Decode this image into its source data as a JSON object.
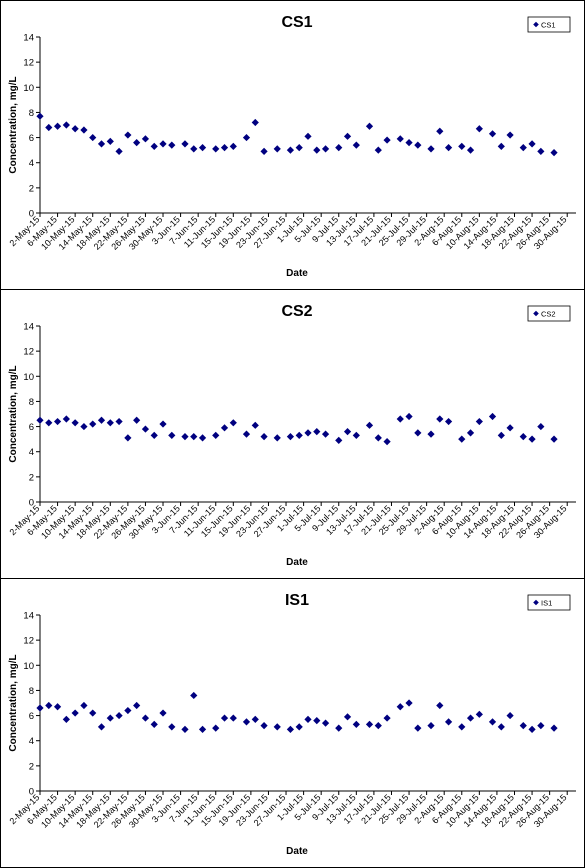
{
  "chart_data": [
    {
      "type": "scatter",
      "title": "CS1",
      "xlabel": "Date",
      "ylabel": "Concentration, mg/L",
      "ylim": [
        0,
        14
      ],
      "yticks": [
        0,
        2,
        4,
        6,
        8,
        10,
        12,
        14
      ],
      "xlim": [
        "2-May-15",
        "1-Sep-15"
      ],
      "xtick_labels": [
        "2-May-15",
        "6-May-15",
        "10-May-15",
        "14-May-15",
        "18-May-15",
        "22-May-15",
        "26-May-15",
        "30-May-15",
        "3-Jun-15",
        "7-Jun-15",
        "11-Jun-15",
        "15-Jun-15",
        "19-Jun-15",
        "23-Jun-15",
        "27-Jun-15",
        "1-Jul-15",
        "5-Jul-15",
        "9-Jul-15",
        "13-Jul-15",
        "17-Jul-15",
        "21-Jul-15",
        "25-Jul-15",
        "29-Jul-15",
        "2-Aug-15",
        "6-Aug-15",
        "10-Aug-15",
        "14-Aug-15",
        "18-Aug-15",
        "22-Aug-15",
        "26-Aug-15",
        "30-Aug-15"
      ],
      "grid": false,
      "legend": "top-right",
      "marker_color": "#000080",
      "series": [
        {
          "name": "CS1",
          "points": [
            [
              "2-May-15",
              7.7
            ],
            [
              "4-May-15",
              6.8
            ],
            [
              "6-May-15",
              6.9
            ],
            [
              "8-May-15",
              7.0
            ],
            [
              "10-May-15",
              6.7
            ],
            [
              "12-May-15",
              6.6
            ],
            [
              "14-May-15",
              6.0
            ],
            [
              "16-May-15",
              5.5
            ],
            [
              "18-May-15",
              5.7
            ],
            [
              "20-May-15",
              4.9
            ],
            [
              "22-May-15",
              6.2
            ],
            [
              "24-May-15",
              5.6
            ],
            [
              "26-May-15",
              5.9
            ],
            [
              "28-May-15",
              5.3
            ],
            [
              "30-May-15",
              5.5
            ],
            [
              "1-Jun-15",
              5.4
            ],
            [
              "4-Jun-15",
              5.5
            ],
            [
              "6-Jun-15",
              5.1
            ],
            [
              "8-Jun-15",
              5.2
            ],
            [
              "11-Jun-15",
              5.1
            ],
            [
              "13-Jun-15",
              5.2
            ],
            [
              "15-Jun-15",
              5.3
            ],
            [
              "18-Jun-15",
              6.0
            ],
            [
              "20-Jun-15",
              7.2
            ],
            [
              "22-Jun-15",
              4.9
            ],
            [
              "25-Jun-15",
              5.1
            ],
            [
              "28-Jun-15",
              5.0
            ],
            [
              "30-Jun-15",
              5.2
            ],
            [
              "2-Jul-15",
              6.1
            ],
            [
              "4-Jul-15",
              5.0
            ],
            [
              "6-Jul-15",
              5.1
            ],
            [
              "9-Jul-15",
              5.2
            ],
            [
              "11-Jul-15",
              6.1
            ],
            [
              "13-Jul-15",
              5.4
            ],
            [
              "16-Jul-15",
              6.9
            ],
            [
              "18-Jul-15",
              5.0
            ],
            [
              "20-Jul-15",
              5.8
            ],
            [
              "23-Jul-15",
              5.9
            ],
            [
              "25-Jul-15",
              5.6
            ],
            [
              "27-Jul-15",
              5.4
            ],
            [
              "30-Jul-15",
              5.1
            ],
            [
              "1-Aug-15",
              6.5
            ],
            [
              "3-Aug-15",
              5.2
            ],
            [
              "6-Aug-15",
              5.3
            ],
            [
              "8-Aug-15",
              5.0
            ],
            [
              "10-Aug-15",
              6.7
            ],
            [
              "13-Aug-15",
              6.3
            ],
            [
              "15-Aug-15",
              5.3
            ],
            [
              "17-Aug-15",
              6.2
            ],
            [
              "20-Aug-15",
              5.2
            ],
            [
              "22-Aug-15",
              5.5
            ],
            [
              "24-Aug-15",
              4.9
            ],
            [
              "27-Aug-15",
              4.8
            ]
          ]
        }
      ]
    },
    {
      "type": "scatter",
      "title": "CS2",
      "xlabel": "Date",
      "ylabel": "Concentration, mg/L",
      "ylim": [
        0,
        14
      ],
      "yticks": [
        0,
        2,
        4,
        6,
        8,
        10,
        12,
        14
      ],
      "xlim": [
        "2-May-15",
        "1-Sep-15"
      ],
      "xtick_labels": [
        "2-May-15",
        "6-May-15",
        "10-May-15",
        "14-May-15",
        "18-May-15",
        "22-May-15",
        "26-May-15",
        "30-May-15",
        "3-Jun-15",
        "7-Jun-15",
        "11-Jun-15",
        "15-Jun-15",
        "19-Jun-15",
        "23-Jun-15",
        "27-Jun-15",
        "1-Jul-15",
        "5-Jul-15",
        "9-Jul-15",
        "13-Jul-15",
        "17-Jul-15",
        "21-Jul-15",
        "25-Jul-15",
        "29-Jul-15",
        "2-Aug-15",
        "6-Aug-15",
        "10-Aug-15",
        "14-Aug-15",
        "18-Aug-15",
        "22-Aug-15",
        "26-Aug-15",
        "30-Aug-15"
      ],
      "grid": false,
      "legend": "top-right",
      "marker_color": "#000080",
      "series": [
        {
          "name": "CS2",
          "points": [
            [
              "2-May-15",
              6.5
            ],
            [
              "4-May-15",
              6.3
            ],
            [
              "6-May-15",
              6.4
            ],
            [
              "8-May-15",
              6.6
            ],
            [
              "10-May-15",
              6.3
            ],
            [
              "12-May-15",
              6.0
            ],
            [
              "14-May-15",
              6.2
            ],
            [
              "16-May-15",
              6.5
            ],
            [
              "18-May-15",
              6.3
            ],
            [
              "20-May-15",
              6.4
            ],
            [
              "22-May-15",
              5.1
            ],
            [
              "24-May-15",
              6.5
            ],
            [
              "26-May-15",
              5.8
            ],
            [
              "28-May-15",
              5.3
            ],
            [
              "30-May-15",
              6.2
            ],
            [
              "1-Jun-15",
              5.3
            ],
            [
              "4-Jun-15",
              5.2
            ],
            [
              "6-Jun-15",
              5.2
            ],
            [
              "8-Jun-15",
              5.1
            ],
            [
              "11-Jun-15",
              5.3
            ],
            [
              "13-Jun-15",
              5.9
            ],
            [
              "15-Jun-15",
              6.3
            ],
            [
              "18-Jun-15",
              5.4
            ],
            [
              "20-Jun-15",
              6.1
            ],
            [
              "22-Jun-15",
              5.2
            ],
            [
              "25-Jun-15",
              5.1
            ],
            [
              "28-Jun-15",
              5.2
            ],
            [
              "30-Jun-15",
              5.3
            ],
            [
              "2-Jul-15",
              5.5
            ],
            [
              "4-Jul-15",
              5.6
            ],
            [
              "6-Jul-15",
              5.4
            ],
            [
              "9-Jul-15",
              4.9
            ],
            [
              "11-Jul-15",
              5.6
            ],
            [
              "13-Jul-15",
              5.3
            ],
            [
              "16-Jul-15",
              6.1
            ],
            [
              "18-Jul-15",
              5.1
            ],
            [
              "20-Jul-15",
              4.8
            ],
            [
              "23-Jul-15",
              6.6
            ],
            [
              "25-Jul-15",
              6.8
            ],
            [
              "27-Jul-15",
              5.5
            ],
            [
              "30-Jul-15",
              5.4
            ],
            [
              "1-Aug-15",
              6.6
            ],
            [
              "3-Aug-15",
              6.4
            ],
            [
              "6-Aug-15",
              5.0
            ],
            [
              "8-Aug-15",
              5.5
            ],
            [
              "10-Aug-15",
              6.4
            ],
            [
              "13-Aug-15",
              6.8
            ],
            [
              "15-Aug-15",
              5.3
            ],
            [
              "17-Aug-15",
              5.9
            ],
            [
              "20-Aug-15",
              5.2
            ],
            [
              "22-Aug-15",
              5.0
            ],
            [
              "24-Aug-15",
              6.0
            ],
            [
              "27-Aug-15",
              5.0
            ]
          ]
        }
      ]
    },
    {
      "type": "scatter",
      "title": "IS1",
      "xlabel": "Date",
      "ylabel": "Concentration, mg/L",
      "ylim": [
        0,
        14
      ],
      "yticks": [
        0,
        2,
        4,
        6,
        8,
        10,
        12,
        14
      ],
      "xlim": [
        "2-May-15",
        "1-Sep-15"
      ],
      "xtick_labels": [
        "2-May-15",
        "6-May-15",
        "10-May-15",
        "14-May-15",
        "18-May-15",
        "22-May-15",
        "26-May-15",
        "30-May-15",
        "3-Jun-15",
        "7-Jun-15",
        "11-Jun-15",
        "15-Jun-15",
        "19-Jun-15",
        "23-Jun-15",
        "27-Jun-15",
        "1-Jul-15",
        "5-Jul-15",
        "9-Jul-15",
        "13-Jul-15",
        "17-Jul-15",
        "21-Jul-15",
        "25-Jul-15",
        "29-Jul-15",
        "2-Aug-15",
        "6-Aug-15",
        "10-Aug-15",
        "14-Aug-15",
        "18-Aug-15",
        "22-Aug-15",
        "26-Aug-15",
        "30-Aug-15"
      ],
      "grid": false,
      "legend": "top-right",
      "marker_color": "#000080",
      "series": [
        {
          "name": "IS1",
          "points": [
            [
              "2-May-15",
              6.6
            ],
            [
              "4-May-15",
              6.8
            ],
            [
              "6-May-15",
              6.7
            ],
            [
              "8-May-15",
              5.7
            ],
            [
              "10-May-15",
              6.2
            ],
            [
              "12-May-15",
              6.8
            ],
            [
              "14-May-15",
              6.2
            ],
            [
              "16-May-15",
              5.1
            ],
            [
              "18-May-15",
              5.8
            ],
            [
              "20-May-15",
              6.0
            ],
            [
              "22-May-15",
              6.4
            ],
            [
              "24-May-15",
              6.8
            ],
            [
              "26-May-15",
              5.8
            ],
            [
              "28-May-15",
              5.3
            ],
            [
              "30-May-15",
              6.2
            ],
            [
              "1-Jun-15",
              5.1
            ],
            [
              "4-Jun-15",
              4.9
            ],
            [
              "6-Jun-15",
              7.6
            ],
            [
              "8-Jun-15",
              4.9
            ],
            [
              "11-Jun-15",
              5.0
            ],
            [
              "13-Jun-15",
              5.8
            ],
            [
              "15-Jun-15",
              5.8
            ],
            [
              "18-Jun-15",
              5.5
            ],
            [
              "20-Jun-15",
              5.7
            ],
            [
              "22-Jun-15",
              5.2
            ],
            [
              "25-Jun-15",
              5.1
            ],
            [
              "28-Jun-15",
              4.9
            ],
            [
              "30-Jun-15",
              5.1
            ],
            [
              "2-Jul-15",
              5.7
            ],
            [
              "4-Jul-15",
              5.6
            ],
            [
              "6-Jul-15",
              5.4
            ],
            [
              "9-Jul-15",
              5.0
            ],
            [
              "11-Jul-15",
              5.9
            ],
            [
              "13-Jul-15",
              5.3
            ],
            [
              "16-Jul-15",
              5.3
            ],
            [
              "18-Jul-15",
              5.2
            ],
            [
              "20-Jul-15",
              5.8
            ],
            [
              "23-Jul-15",
              6.7
            ],
            [
              "25-Jul-15",
              7.0
            ],
            [
              "27-Jul-15",
              5.0
            ],
            [
              "30-Jul-15",
              5.2
            ],
            [
              "1-Aug-15",
              6.8
            ],
            [
              "3-Aug-15",
              5.5
            ],
            [
              "6-Aug-15",
              5.1
            ],
            [
              "8-Aug-15",
              5.8
            ],
            [
              "10-Aug-15",
              6.1
            ],
            [
              "13-Aug-15",
              5.5
            ],
            [
              "15-Aug-15",
              5.1
            ],
            [
              "17-Aug-15",
              6.0
            ],
            [
              "20-Aug-15",
              5.2
            ],
            [
              "22-Aug-15",
              4.9
            ],
            [
              "24-Aug-15",
              5.2
            ],
            [
              "27-Aug-15",
              5.0
            ]
          ]
        }
      ]
    }
  ]
}
